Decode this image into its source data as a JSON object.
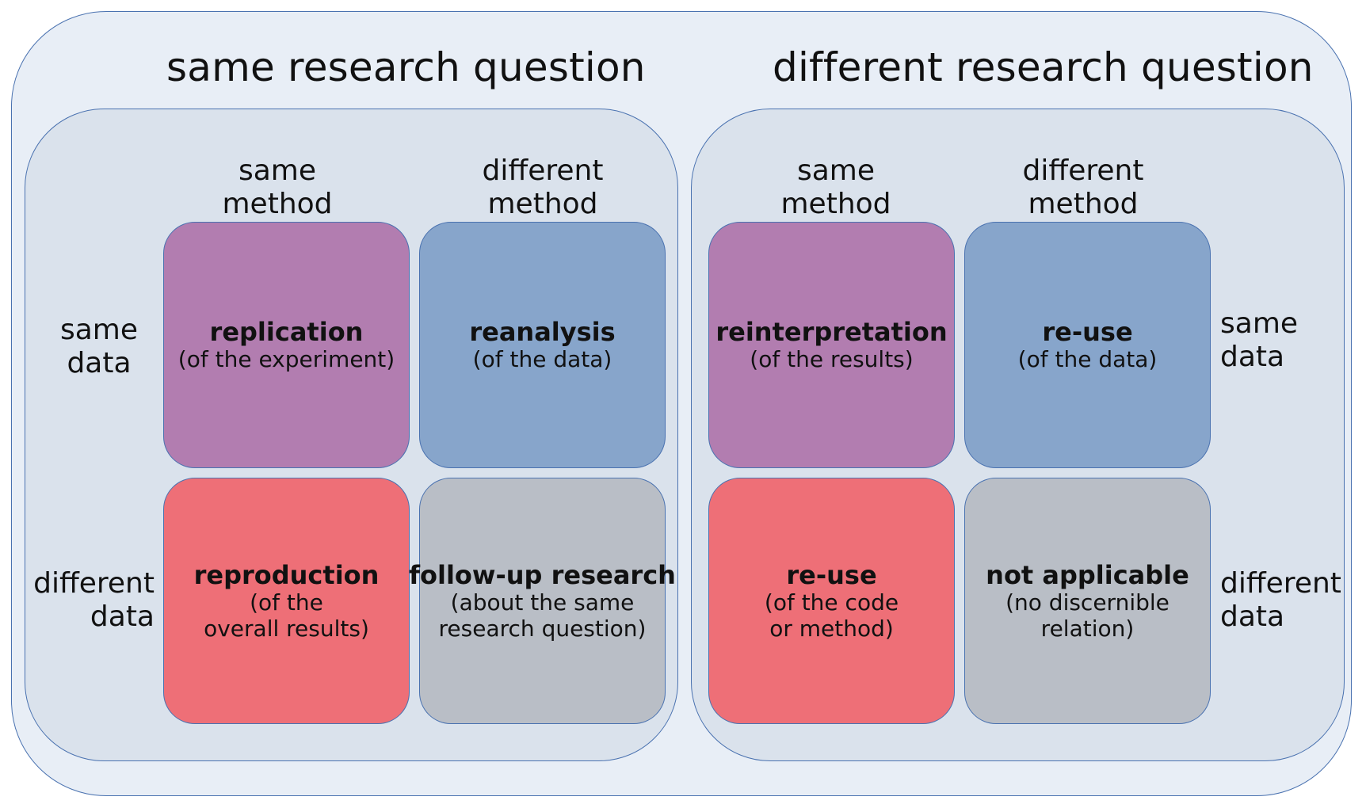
{
  "colors": {
    "outer_fill": "#e8eef6",
    "panel_fill": "#dae2ec",
    "border": "#4a72b0",
    "replication": "#b27db0",
    "reanalysis": "#87a5cb",
    "reproduction": "#ee6f77",
    "neutral": "#b9bec6"
  },
  "same_rq": {
    "title": "same research question",
    "col_same": "same\nmethod",
    "col_diff": "different\nmethod",
    "row_same": "same\ndata",
    "row_diff": "different\ndata",
    "cells": {
      "tl": {
        "name": "replication",
        "note": "(of the experiment)"
      },
      "tr": {
        "name": "reanalysis",
        "note": "(of the data)"
      },
      "bl": {
        "name": "reproduction",
        "note": "(of the\noverall results)"
      },
      "br": {
        "name": "follow-up research",
        "note": "(about the same\nresearch question)"
      }
    }
  },
  "diff_rq": {
    "title": "different research question",
    "col_same": "same\nmethod",
    "col_diff": "different\nmethod",
    "row_same": "same\ndata",
    "row_diff": "different\ndata",
    "cells": {
      "tl": {
        "name": "reinterpretation",
        "note": "(of the results)"
      },
      "tr": {
        "name": "re-use",
        "note": "(of the data)"
      },
      "bl": {
        "name": "re-use",
        "note": "(of the code\nor method)"
      },
      "br": {
        "name": "not applicable",
        "note": "(no discernible\nrelation)"
      }
    }
  }
}
